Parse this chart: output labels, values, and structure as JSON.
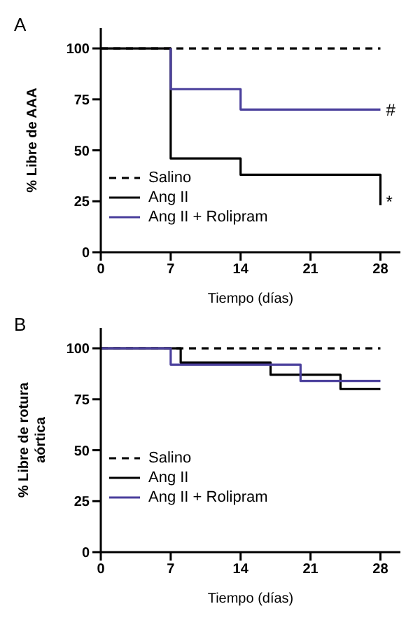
{
  "chart_data": [
    {
      "type": "step",
      "annotations": [
        "A",
        {
          "text": "#",
          "x": 28,
          "y": 70
        },
        {
          "text": "*",
          "x": 28,
          "y": 25
        }
      ],
      "xlabel": "Tiempo (días)",
      "ylabel": "% Libre de AAA",
      "xlim": [
        0,
        30
      ],
      "xticks": [
        0,
        7,
        14,
        21,
        28
      ],
      "ylim": [
        0,
        110
      ],
      "yticks": [
        0,
        25,
        50,
        75,
        100
      ],
      "legend": "bottom left",
      "series": [
        {
          "name": "Salino",
          "color": "#000000",
          "line_style": "dashed",
          "x": [
            0,
            28
          ],
          "values": [
            100,
            100
          ]
        },
        {
          "name": "Ang II",
          "color": "#000000",
          "line_style": "solid",
          "x": [
            0,
            7,
            14,
            28,
            28
          ],
          "values": [
            100,
            46,
            38,
            38,
            23
          ]
        },
        {
          "name": "Ang II + Rolipram",
          "color": "#4a3f9c",
          "line_style": "solid",
          "x": [
            7,
            7,
            14,
            28
          ],
          "values": [
            100,
            80,
            70,
            70
          ]
        }
      ]
    },
    {
      "type": "step",
      "annotations": [
        "B"
      ],
      "xlabel": "Tiempo (días)",
      "ylabel": "% Libre de rotura aórtica",
      "xlim": [
        0,
        30
      ],
      "xticks": [
        0,
        7,
        14,
        21,
        28
      ],
      "ylim": [
        0,
        110
      ],
      "yticks": [
        0,
        25,
        50,
        75,
        100
      ],
      "legend": "left",
      "series": [
        {
          "name": "Salino",
          "color": "#000000",
          "line_style": "dashed",
          "x": [
            0,
            28
          ],
          "values": [
            100,
            100
          ]
        },
        {
          "name": "Ang II",
          "color": "#000000",
          "line_style": "solid",
          "x": [
            0,
            8,
            17,
            24,
            28
          ],
          "values": [
            100,
            93,
            87,
            80,
            80
          ]
        },
        {
          "name": "Ang II + Rolipram",
          "color": "#4a3f9c",
          "line_style": "solid",
          "x": [
            0,
            7,
            20,
            28
          ],
          "values": [
            100,
            92,
            84,
            84
          ]
        }
      ]
    }
  ]
}
